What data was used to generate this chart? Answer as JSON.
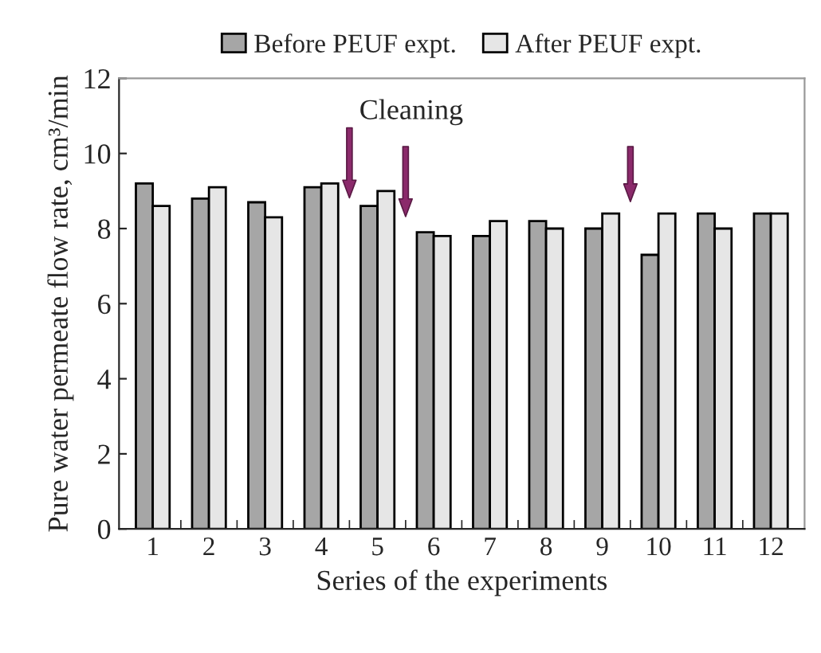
{
  "chart_data": {
    "type": "bar",
    "xlabel": "Series of the experiments",
    "ylabel": "Pure water permeate flow rate, cm³/min",
    "categories": [
      "1",
      "2",
      "3",
      "4",
      "5",
      "6",
      "7",
      "8",
      "9",
      "10",
      "11",
      "12"
    ],
    "series": [
      {
        "name": "Before PEUF expt.",
        "color": "#a6a6a6",
        "values": [
          9.2,
          8.8,
          8.7,
          9.1,
          8.6,
          7.9,
          7.8,
          8.2,
          8.0,
          7.3,
          8.4,
          8.4
        ]
      },
      {
        "name": "After PEUF expt.",
        "color": "#e6e6e6",
        "values": [
          8.6,
          9.1,
          8.3,
          9.2,
          9.0,
          7.8,
          8.2,
          8.0,
          8.4,
          8.4,
          8.0,
          8.4
        ]
      }
    ],
    "ylim": [
      0,
      12
    ],
    "yticks": [
      0,
      2,
      4,
      6,
      8,
      10,
      12
    ],
    "annotations": [
      "Cleaning"
    ],
    "grid": false,
    "legend": "top"
  }
}
